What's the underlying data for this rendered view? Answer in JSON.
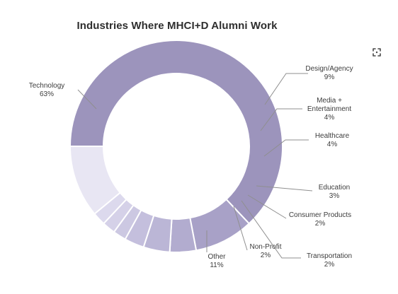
{
  "title": "Industries Where MHCI+D Alumni Work",
  "toolbar": {
    "icon": "expand-icon"
  },
  "colors": {
    "technology": "#9C94BC",
    "design_agency": "#A8A1C7",
    "media_entertainment": "#B2ACCF",
    "healthcare": "#BBB6D6",
    "education": "#C4BFDD",
    "consumer_products": "#CCC8E2",
    "transportation": "#D5D1E8",
    "non_profit": "#DCD9ED",
    "other": "#E8E6F3",
    "leader": "#8F8F8F"
  },
  "chart_data": {
    "type": "pie",
    "variant": "donut",
    "title": "Industries Where MHCI+D Alumni Work",
    "slices": [
      {
        "key": "technology",
        "name": "Technology",
        "value": 63,
        "label": "63%"
      },
      {
        "key": "design_agency",
        "name": "Design/Agency",
        "value": 9,
        "label": "9%"
      },
      {
        "key": "media_entertainment",
        "name": "Media + Entertainment",
        "value": 4,
        "label": "4%"
      },
      {
        "key": "healthcare",
        "name": "Healthcare",
        "value": 4,
        "label": "4%"
      },
      {
        "key": "education",
        "name": "Education",
        "value": 3,
        "label": "3%"
      },
      {
        "key": "consumer_products",
        "name": "Consumer Products",
        "value": 2,
        "label": "2%"
      },
      {
        "key": "transportation",
        "name": "Transportation",
        "value": 2,
        "label": "2%"
      },
      {
        "key": "non_profit",
        "name": "Non-Profit",
        "value": 2,
        "label": "2%"
      },
      {
        "key": "other",
        "name": "Other",
        "value": 11,
        "label": "11%"
      }
    ]
  }
}
